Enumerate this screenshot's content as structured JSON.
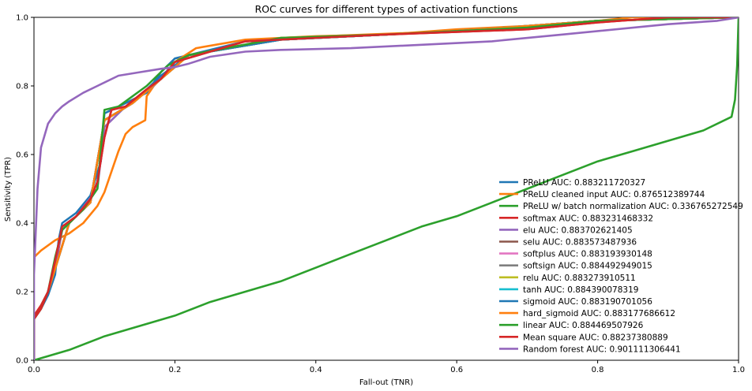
{
  "chart_data": {
    "type": "line",
    "title": "ROC curves for different types of activation functions",
    "xlabel": "Fall-out (TNR)",
    "ylabel": "Sensitivity (TPR)",
    "xlim": [
      0,
      1
    ],
    "ylim": [
      0,
      1
    ],
    "xticks": [
      "0.0",
      "0.2",
      "0.4",
      "0.6",
      "0.8",
      "1.0"
    ],
    "yticks": [
      "0.0",
      "0.2",
      "0.4",
      "0.6",
      "0.8",
      "1.0"
    ],
    "grid": false,
    "legend_position": "lower-right",
    "series": [
      {
        "name": "PReLU AUC: 0.883211720327",
        "color": "#1f77b4",
        "points": [
          [
            0,
            0
          ],
          [
            0,
            0.12
          ],
          [
            0.01,
            0.15
          ],
          [
            0.02,
            0.19
          ],
          [
            0.03,
            0.25
          ],
          [
            0.035,
            0.35
          ],
          [
            0.04,
            0.4
          ],
          [
            0.06,
            0.43
          ],
          [
            0.08,
            0.48
          ],
          [
            0.095,
            0.58
          ],
          [
            0.1,
            0.72
          ],
          [
            0.13,
            0.75
          ],
          [
            0.16,
            0.78
          ],
          [
            0.18,
            0.84
          ],
          [
            0.2,
            0.88
          ],
          [
            0.3,
            0.93
          ],
          [
            0.5,
            0.95
          ],
          [
            0.7,
            0.97
          ],
          [
            0.8,
            0.99
          ],
          [
            1,
            1
          ]
        ]
      },
      {
        "name": "PReLU cleaned input AUC: 0.876512389744",
        "color": "#ff7f0e",
        "points": [
          [
            0,
            0.3
          ],
          [
            0.01,
            0.32
          ],
          [
            0.03,
            0.35
          ],
          [
            0.05,
            0.37
          ],
          [
            0.07,
            0.4
          ],
          [
            0.09,
            0.45
          ],
          [
            0.1,
            0.49
          ],
          [
            0.11,
            0.55
          ],
          [
            0.12,
            0.61
          ],
          [
            0.13,
            0.66
          ],
          [
            0.14,
            0.68
          ],
          [
            0.158,
            0.7
          ],
          [
            0.16,
            0.77
          ],
          [
            0.17,
            0.8
          ],
          [
            0.19,
            0.84
          ],
          [
            0.2,
            0.87
          ],
          [
            0.23,
            0.91
          ],
          [
            0.3,
            0.935
          ],
          [
            0.4,
            0.945
          ],
          [
            0.5,
            0.95
          ],
          [
            0.6,
            0.965
          ],
          [
            0.7,
            0.975
          ],
          [
            0.8,
            0.99
          ],
          [
            0.85,
            1
          ],
          [
            1,
            1
          ]
        ]
      },
      {
        "name": "PReLU w/ batch normalization AUC: 0.336765272549",
        "color": "#2ca02c",
        "points": [
          [
            0,
            0
          ],
          [
            0.05,
            0.03
          ],
          [
            0.1,
            0.07
          ],
          [
            0.15,
            0.1
          ],
          [
            0.2,
            0.13
          ],
          [
            0.25,
            0.17
          ],
          [
            0.3,
            0.2
          ],
          [
            0.35,
            0.23
          ],
          [
            0.4,
            0.27
          ],
          [
            0.45,
            0.31
          ],
          [
            0.5,
            0.35
          ],
          [
            0.55,
            0.39
          ],
          [
            0.6,
            0.42
          ],
          [
            0.65,
            0.46
          ],
          [
            0.7,
            0.5
          ],
          [
            0.75,
            0.54
          ],
          [
            0.8,
            0.58
          ],
          [
            0.85,
            0.61
          ],
          [
            0.9,
            0.64
          ],
          [
            0.95,
            0.67
          ],
          [
            0.99,
            0.71
          ],
          [
            0.995,
            0.76
          ],
          [
            0.998,
            0.86
          ],
          [
            1,
            1
          ]
        ]
      },
      {
        "name": "softmax AUC: 0.883231468332",
        "color": "#d62728",
        "points": [
          [
            0,
            0
          ],
          [
            0,
            0.13
          ],
          [
            0.01,
            0.16
          ],
          [
            0.02,
            0.2
          ],
          [
            0.03,
            0.27
          ],
          [
            0.04,
            0.38
          ],
          [
            0.06,
            0.42
          ],
          [
            0.08,
            0.47
          ],
          [
            0.09,
            0.52
          ],
          [
            0.1,
            0.65
          ],
          [
            0.11,
            0.73
          ],
          [
            0.13,
            0.74
          ],
          [
            0.16,
            0.79
          ],
          [
            0.18,
            0.82
          ],
          [
            0.2,
            0.87
          ],
          [
            0.25,
            0.9
          ],
          [
            0.3,
            0.93
          ],
          [
            0.5,
            0.95
          ],
          [
            0.7,
            0.965
          ],
          [
            0.8,
            0.985
          ],
          [
            0.9,
            1
          ],
          [
            1,
            1
          ]
        ]
      },
      {
        "name": "elu AUC: 0.883702621405",
        "color": "#9467bd",
        "points": [
          [
            0.02,
            0.2
          ],
          [
            0.03,
            0.28
          ],
          [
            0.04,
            0.38
          ],
          [
            0.06,
            0.42
          ],
          [
            0.09,
            0.5
          ],
          [
            0.1,
            0.68
          ],
          [
            0.13,
            0.74
          ],
          [
            0.17,
            0.8
          ],
          [
            0.2,
            0.87
          ],
          [
            0.3,
            0.93
          ],
          [
            0.5,
            0.95
          ],
          [
            0.7,
            0.97
          ],
          [
            0.8,
            0.99
          ],
          [
            1,
            1
          ]
        ]
      },
      {
        "name": "selu AUC: 0.883573487936",
        "color": "#8c564b",
        "points": [
          [
            0.02,
            0.2
          ],
          [
            0.035,
            0.3
          ],
          [
            0.05,
            0.4
          ],
          [
            0.08,
            0.46
          ],
          [
            0.1,
            0.7
          ],
          [
            0.14,
            0.75
          ],
          [
            0.18,
            0.82
          ],
          [
            0.22,
            0.89
          ],
          [
            0.35,
            0.935
          ],
          [
            0.6,
            0.96
          ],
          [
            0.8,
            0.99
          ],
          [
            1,
            1
          ]
        ]
      },
      {
        "name": "softplus AUC: 0.883193930148",
        "color": "#e377c2",
        "points": [
          [
            0.02,
            0.2
          ],
          [
            0.035,
            0.3
          ],
          [
            0.05,
            0.4
          ],
          [
            0.08,
            0.46
          ],
          [
            0.1,
            0.7
          ],
          [
            0.14,
            0.75
          ],
          [
            0.18,
            0.82
          ],
          [
            0.22,
            0.89
          ],
          [
            0.35,
            0.935
          ],
          [
            0.6,
            0.96
          ],
          [
            0.8,
            0.99
          ],
          [
            1,
            1
          ]
        ]
      },
      {
        "name": "softsign AUC: 0.884492949015",
        "color": "#7f7f7f",
        "points": [
          [
            0.02,
            0.2
          ],
          [
            0.035,
            0.3
          ],
          [
            0.05,
            0.4
          ],
          [
            0.08,
            0.46
          ],
          [
            0.1,
            0.7
          ],
          [
            0.14,
            0.75
          ],
          [
            0.18,
            0.82
          ],
          [
            0.22,
            0.89
          ],
          [
            0.35,
            0.935
          ],
          [
            0.6,
            0.96
          ],
          [
            0.8,
            0.99
          ],
          [
            1,
            1
          ]
        ]
      },
      {
        "name": "relu AUC: 0.883273910511",
        "color": "#bcbd22",
        "points": [
          [
            0.02,
            0.2
          ],
          [
            0.035,
            0.3
          ],
          [
            0.05,
            0.4
          ],
          [
            0.08,
            0.46
          ],
          [
            0.1,
            0.7
          ],
          [
            0.14,
            0.75
          ],
          [
            0.18,
            0.82
          ],
          [
            0.22,
            0.89
          ],
          [
            0.35,
            0.935
          ],
          [
            0.6,
            0.96
          ],
          [
            0.8,
            0.99
          ],
          [
            1,
            1
          ]
        ]
      },
      {
        "name": "tanh AUC: 0.884390078319",
        "color": "#17becf",
        "points": [
          [
            0.02,
            0.2
          ],
          [
            0.035,
            0.3
          ],
          [
            0.05,
            0.4
          ],
          [
            0.08,
            0.46
          ],
          [
            0.1,
            0.7
          ],
          [
            0.14,
            0.75
          ],
          [
            0.18,
            0.82
          ],
          [
            0.22,
            0.89
          ],
          [
            0.35,
            0.935
          ],
          [
            0.6,
            0.96
          ],
          [
            0.8,
            0.99
          ],
          [
            1,
            1
          ]
        ]
      },
      {
        "name": "sigmoid AUC: 0.883190701056",
        "color": "#1f77b4",
        "points": [
          [
            0.02,
            0.2
          ],
          [
            0.035,
            0.3
          ],
          [
            0.05,
            0.4
          ],
          [
            0.08,
            0.46
          ],
          [
            0.1,
            0.7
          ],
          [
            0.14,
            0.75
          ],
          [
            0.18,
            0.83
          ],
          [
            0.22,
            0.89
          ],
          [
            0.35,
            0.935
          ],
          [
            0.6,
            0.96
          ],
          [
            0.8,
            0.99
          ],
          [
            1,
            1
          ]
        ]
      },
      {
        "name": "hard_sigmoid AUC: 0.883177686612",
        "color": "#ff7f0e",
        "points": [
          [
            0.02,
            0.2
          ],
          [
            0.035,
            0.3
          ],
          [
            0.05,
            0.4
          ],
          [
            0.08,
            0.46
          ],
          [
            0.1,
            0.7
          ],
          [
            0.14,
            0.75
          ],
          [
            0.18,
            0.82
          ],
          [
            0.22,
            0.89
          ],
          [
            0.35,
            0.94
          ],
          [
            0.6,
            0.96
          ],
          [
            0.8,
            0.99
          ],
          [
            1,
            1
          ]
        ]
      },
      {
        "name": "linear AUC: 0.884469507926",
        "color": "#2ca02c",
        "points": [
          [
            0,
            0
          ],
          [
            0,
            0.12
          ],
          [
            0.01,
            0.15
          ],
          [
            0.02,
            0.2
          ],
          [
            0.03,
            0.3
          ],
          [
            0.04,
            0.38
          ],
          [
            0.07,
            0.44
          ],
          [
            0.09,
            0.5
          ],
          [
            0.1,
            0.73
          ],
          [
            0.12,
            0.74
          ],
          [
            0.16,
            0.8
          ],
          [
            0.19,
            0.86
          ],
          [
            0.22,
            0.89
          ],
          [
            0.35,
            0.94
          ],
          [
            0.5,
            0.95
          ],
          [
            0.7,
            0.97
          ],
          [
            0.8,
            0.99
          ],
          [
            1,
            1
          ]
        ]
      },
      {
        "name": "Mean square AUC: 0.88237380889",
        "color": "#d62728",
        "points": [
          [
            0,
            0
          ],
          [
            0,
            0.12
          ],
          [
            0.01,
            0.15
          ],
          [
            0.02,
            0.2
          ],
          [
            0.03,
            0.29
          ],
          [
            0.04,
            0.39
          ],
          [
            0.06,
            0.42
          ],
          [
            0.08,
            0.47
          ],
          [
            0.09,
            0.52
          ],
          [
            0.1,
            0.65
          ],
          [
            0.11,
            0.73
          ],
          [
            0.13,
            0.74
          ],
          [
            0.16,
            0.79
          ],
          [
            0.18,
            0.82
          ],
          [
            0.2,
            0.87
          ],
          [
            0.25,
            0.9
          ],
          [
            0.3,
            0.93
          ],
          [
            0.5,
            0.95
          ],
          [
            0.7,
            0.965
          ],
          [
            0.8,
            0.985
          ],
          [
            0.9,
            1
          ],
          [
            1,
            1
          ]
        ]
      },
      {
        "name": "Random forest AUC: 0.901111306441",
        "color": "#9467bd",
        "points": [
          [
            0,
            0
          ],
          [
            0,
            0.25
          ],
          [
            0.005,
            0.5
          ],
          [
            0.01,
            0.62
          ],
          [
            0.02,
            0.69
          ],
          [
            0.03,
            0.72
          ],
          [
            0.04,
            0.74
          ],
          [
            0.05,
            0.755
          ],
          [
            0.07,
            0.78
          ],
          [
            0.09,
            0.8
          ],
          [
            0.12,
            0.83
          ],
          [
            0.15,
            0.84
          ],
          [
            0.18,
            0.85
          ],
          [
            0.2,
            0.855
          ],
          [
            0.22,
            0.865
          ],
          [
            0.25,
            0.885
          ],
          [
            0.3,
            0.9
          ],
          [
            0.35,
            0.905
          ],
          [
            0.45,
            0.91
          ],
          [
            0.55,
            0.92
          ],
          [
            0.65,
            0.93
          ],
          [
            0.75,
            0.95
          ],
          [
            0.9,
            0.98
          ],
          [
            0.97,
            0.99
          ],
          [
            1,
            1
          ]
        ]
      }
    ]
  }
}
